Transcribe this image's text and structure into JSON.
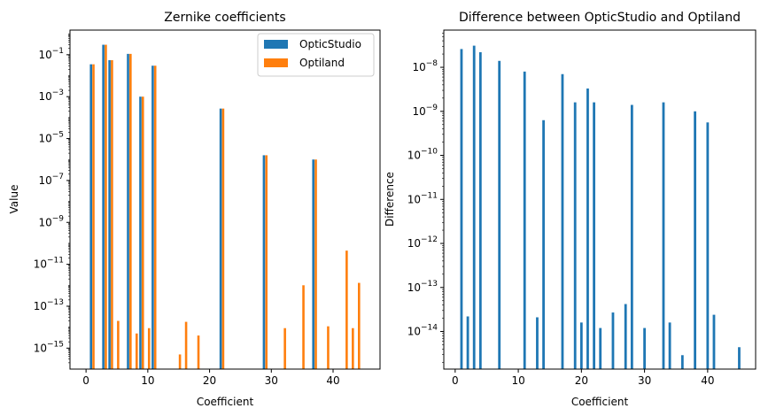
{
  "chart_data": [
    {
      "type": "bar",
      "title": "Zernike coefficients",
      "xlabel": "Coefficient",
      "ylabel": "Value",
      "yscale": "log",
      "xlim": [
        -2.6,
        47.6
      ],
      "ylim": [
        1e-16,
        1.5
      ],
      "xticks": [
        0,
        10,
        20,
        30,
        40
      ],
      "yticks": [
        {
          "value": 1e-15,
          "base": "10",
          "exp": "−15"
        },
        {
          "value": 1e-13,
          "base": "10",
          "exp": "−13"
        },
        {
          "value": 1e-11,
          "base": "10",
          "exp": "−11"
        },
        {
          "value": 1e-09,
          "base": "10",
          "exp": "−9"
        },
        {
          "value": 1e-07,
          "base": "10",
          "exp": "−7"
        },
        {
          "value": 1e-05,
          "base": "10",
          "exp": "−5"
        },
        {
          "value": 0.001,
          "base": "10",
          "exp": "−3"
        },
        {
          "value": 0.1,
          "base": "10",
          "exp": "−1"
        }
      ],
      "legend_position": "top-right",
      "series": [
        {
          "name": "OpticStudio",
          "color": "#1f77b4",
          "points": [
            {
              "x": 1,
              "y": 0.035
            },
            {
              "x": 3,
              "y": 0.3
            },
            {
              "x": 4,
              "y": 0.055
            },
            {
              "x": 7,
              "y": 0.11
            },
            {
              "x": 9,
              "y": 0.001
            },
            {
              "x": 11,
              "y": 0.03
            },
            {
              "x": 22,
              "y": 0.00027
            },
            {
              "x": 29,
              "y": 1.6e-06
            },
            {
              "x": 37,
              "y": 1e-06
            }
          ]
        },
        {
          "name": "Optiland",
          "color": "#ff7f0e",
          "points": [
            {
              "x": 1,
              "y": 0.035
            },
            {
              "x": 3,
              "y": 0.3
            },
            {
              "x": 4,
              "y": 0.055
            },
            {
              "x": 7,
              "y": 0.11
            },
            {
              "x": 9,
              "y": 0.001
            },
            {
              "x": 11,
              "y": 0.03
            },
            {
              "x": 22,
              "y": 0.00027
            },
            {
              "x": 29,
              "y": 1.6e-06
            },
            {
              "x": 37,
              "y": 1e-06
            },
            {
              "x": 5,
              "y": 2e-14
            },
            {
              "x": 8,
              "y": 5e-15
            },
            {
              "x": 10,
              "y": 9e-15
            },
            {
              "x": 15,
              "y": 5e-16
            },
            {
              "x": 16,
              "y": 1.8e-14
            },
            {
              "x": 18,
              "y": 4e-15
            },
            {
              "x": 32,
              "y": 9e-15
            },
            {
              "x": 35,
              "y": 1e-12
            },
            {
              "x": 39,
              "y": 1.1e-14
            },
            {
              "x": 42,
              "y": 4.5e-11
            },
            {
              "x": 43,
              "y": 9e-15
            },
            {
              "x": 44,
              "y": 1.3e-12
            }
          ]
        }
      ]
    },
    {
      "type": "bar",
      "title": "Difference between OpticStudio and Optiland",
      "xlabel": "Coefficient",
      "ylabel": "Difference",
      "yscale": "log",
      "xlim": [
        -1.8,
        47.6
      ],
      "ylim": [
        1.4e-15,
        7e-08
      ],
      "xticks": [
        0,
        10,
        20,
        30,
        40
      ],
      "yticks": [
        {
          "value": 1e-14,
          "base": "10",
          "exp": "−14"
        },
        {
          "value": 1e-13,
          "base": "10",
          "exp": "−13"
        },
        {
          "value": 1e-12,
          "base": "10",
          "exp": "−12"
        },
        {
          "value": 1e-11,
          "base": "10",
          "exp": "−11"
        },
        {
          "value": 1e-10,
          "base": "10",
          "exp": "−10"
        },
        {
          "value": 1e-09,
          "base": "10",
          "exp": "−9"
        },
        {
          "value": 1e-08,
          "base": "10",
          "exp": "−8"
        }
      ],
      "series": [
        {
          "color": "#1f77b4",
          "points": [
            {
              "x": 1,
              "y": 2.6e-08
            },
            {
              "x": 2,
              "y": 2.2e-14
            },
            {
              "x": 3,
              "y": 3.1e-08
            },
            {
              "x": 4,
              "y": 2.2e-08
            },
            {
              "x": 7,
              "y": 1.4e-08
            },
            {
              "x": 11,
              "y": 8e-09
            },
            {
              "x": 13,
              "y": 2.1e-14
            },
            {
              "x": 14,
              "y": 6.3e-10
            },
            {
              "x": 17,
              "y": 7e-09
            },
            {
              "x": 19,
              "y": 1.6e-09
            },
            {
              "x": 20,
              "y": 1.6e-14
            },
            {
              "x": 21,
              "y": 3.3e-09
            },
            {
              "x": 22,
              "y": 1.6e-09
            },
            {
              "x": 23,
              "y": 1.2e-14
            },
            {
              "x": 25,
              "y": 2.7e-14
            },
            {
              "x": 27,
              "y": 4.2e-14
            },
            {
              "x": 28,
              "y": 1.4e-09
            },
            {
              "x": 30,
              "y": 1.2e-14
            },
            {
              "x": 33,
              "y": 1.6e-09
            },
            {
              "x": 34,
              "y": 1.6e-14
            },
            {
              "x": 36,
              "y": 2.9e-15
            },
            {
              "x": 38,
              "y": 1e-09
            },
            {
              "x": 40,
              "y": 5.6e-10
            },
            {
              "x": 41,
              "y": 2.4e-14
            },
            {
              "x": 45,
              "y": 4.4e-15
            }
          ]
        }
      ]
    }
  ]
}
